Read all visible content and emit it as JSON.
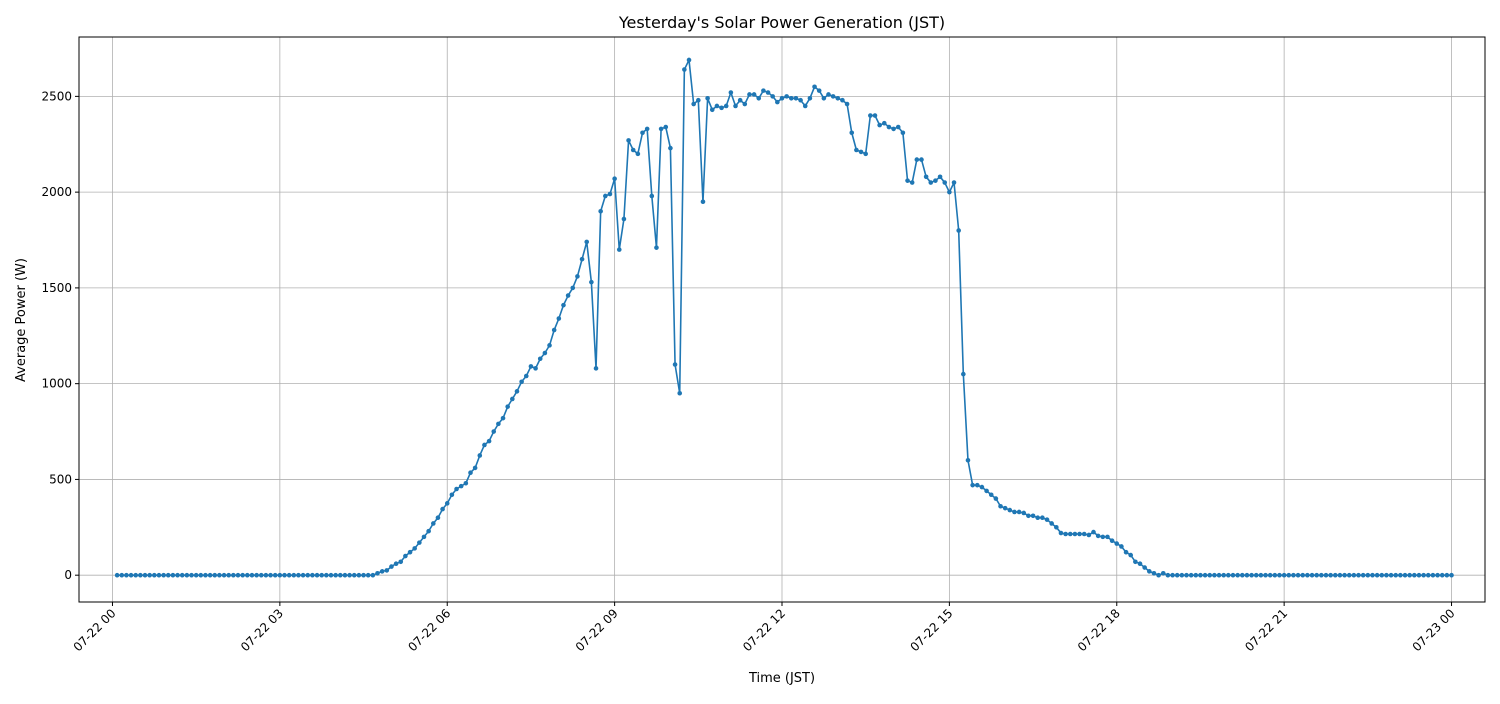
{
  "chart_data": {
    "type": "line",
    "title": "Yesterday's Solar Power Generation (JST)",
    "xlabel": "Time (JST)",
    "ylabel": "Average Power (W)",
    "x_start": "07-22 00:05",
    "x_interval_minutes": 5,
    "xlim": [
      "07-21 23:24",
      "07-23 00:36"
    ],
    "ylim": [
      -140,
      2810
    ],
    "x_ticks": [
      "07-22 00",
      "07-22 03",
      "07-22 06",
      "07-22 09",
      "07-22 12",
      "07-22 15",
      "07-22 18",
      "07-22 21",
      "07-23 00"
    ],
    "y_ticks": [
      0,
      500,
      1000,
      1500,
      2000,
      2500
    ],
    "grid": true,
    "line_color": "#1f77b4",
    "series": [
      {
        "values": [
          0,
          0,
          0,
          0,
          0,
          0,
          0,
          0,
          0,
          0,
          0,
          0,
          0,
          0,
          0,
          0,
          0,
          0,
          0,
          0,
          0,
          0,
          0,
          0,
          0,
          0,
          0,
          0,
          0,
          0,
          0,
          0,
          0,
          0,
          0,
          0,
          0,
          0,
          0,
          0,
          0,
          0,
          0,
          0,
          0,
          0,
          0,
          0,
          0,
          0,
          0,
          0,
          0,
          0,
          0,
          0,
          10,
          20,
          25,
          45,
          60,
          70,
          100,
          120,
          140,
          170,
          200,
          230,
          270,
          300,
          345,
          375,
          420,
          450,
          465,
          480,
          535,
          560,
          625,
          680,
          700,
          750,
          790,
          820,
          880,
          920,
          960,
          1010,
          1040,
          1090,
          1080,
          1130,
          1160,
          1200,
          1280,
          1340,
          1410,
          1460,
          1500,
          1560,
          1650,
          1740,
          1530,
          1080,
          1900,
          1980,
          1990,
          2070,
          1700,
          1860,
          2270,
          2220,
          2200,
          2310,
          2330,
          1980,
          1710,
          2330,
          2340,
          2230,
          1100,
          950,
          2640,
          2690,
          2460,
          2480,
          1950,
          2490,
          2430,
          2450,
          2440,
          2450,
          2520,
          2450,
          2480,
          2460,
          2510,
          2510,
          2490,
          2530,
          2520,
          2500,
          2470,
          2490,
          2500,
          2490,
          2490,
          2480,
          2450,
          2490,
          2550,
          2530,
          2490,
          2510,
          2500,
          2490,
          2480,
          2460,
          2310,
          2220,
          2210,
          2200,
          2400,
          2400,
          2350,
          2360,
          2340,
          2330,
          2340,
          2310,
          2060,
          2050,
          2170,
          2170,
          2080,
          2050,
          2060,
          2080,
          2050,
          2000,
          2050,
          1800,
          1050,
          600,
          470,
          470,
          460,
          440,
          420,
          400,
          360,
          350,
          340,
          330,
          330,
          325,
          310,
          310,
          300,
          300,
          290,
          270,
          250,
          220,
          215,
          215,
          215,
          215,
          215,
          210,
          225,
          205,
          200,
          200,
          180,
          165,
          150,
          120,
          105,
          70,
          60,
          40,
          20,
          10,
          0,
          10,
          0,
          0,
          0,
          0,
          0,
          0,
          0,
          0,
          0,
          0,
          0,
          0,
          0,
          0,
          0,
          0,
          0,
          0,
          0,
          0,
          0,
          0,
          0,
          0,
          0,
          0,
          0,
          0,
          0,
          0,
          0,
          0,
          0,
          0,
          0,
          0,
          0,
          0,
          0,
          0,
          0,
          0,
          0,
          0,
          0,
          0,
          0,
          0,
          0,
          0,
          0,
          0,
          0,
          0,
          0,
          0,
          0,
          0,
          0,
          0,
          0,
          0
        ]
      }
    ]
  }
}
